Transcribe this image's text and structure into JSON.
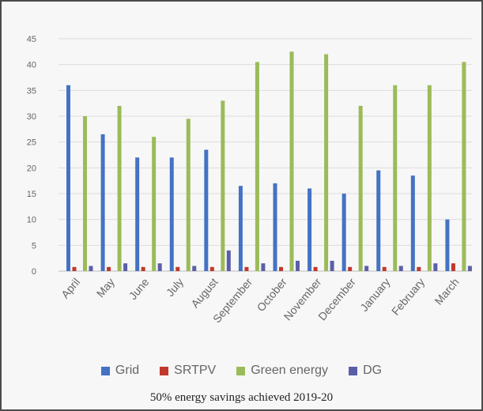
{
  "chart_data": {
    "type": "bar",
    "categories": [
      "April",
      "May",
      "June",
      "July",
      "August",
      "September",
      "October",
      "November",
      "December",
      "January",
      "February",
      "March"
    ],
    "series": [
      {
        "name": "Grid",
        "color": "#4472c4",
        "values": [
          36,
          26.5,
          22,
          22,
          23.5,
          16.5,
          17,
          16,
          15,
          19.5,
          18.5,
          10
        ]
      },
      {
        "name": "SRTPV",
        "color": "#c0392b",
        "values": [
          0.8,
          0.8,
          0.8,
          0.8,
          0.8,
          0.8,
          0.8,
          0.8,
          0.8,
          0.8,
          0.8,
          1.5
        ]
      },
      {
        "name": "Green energy",
        "color": "#9bbb59",
        "values": [
          30,
          32,
          26,
          29.5,
          33,
          40.5,
          42.5,
          42,
          32,
          36,
          36,
          40.5
        ]
      },
      {
        "name": "DG",
        "color": "#5b5fa8",
        "values": [
          1,
          1.5,
          1.5,
          1,
          4,
          1.5,
          2,
          2,
          1,
          1,
          1.5,
          1
        ]
      }
    ],
    "ylim": [
      0,
      45
    ],
    "yticks": [
      0,
      5,
      10,
      15,
      20,
      25,
      30,
      35,
      40,
      45
    ],
    "grid": true,
    "legend_position": "bottom",
    "caption": "50% energy savings achieved 2019-20"
  }
}
